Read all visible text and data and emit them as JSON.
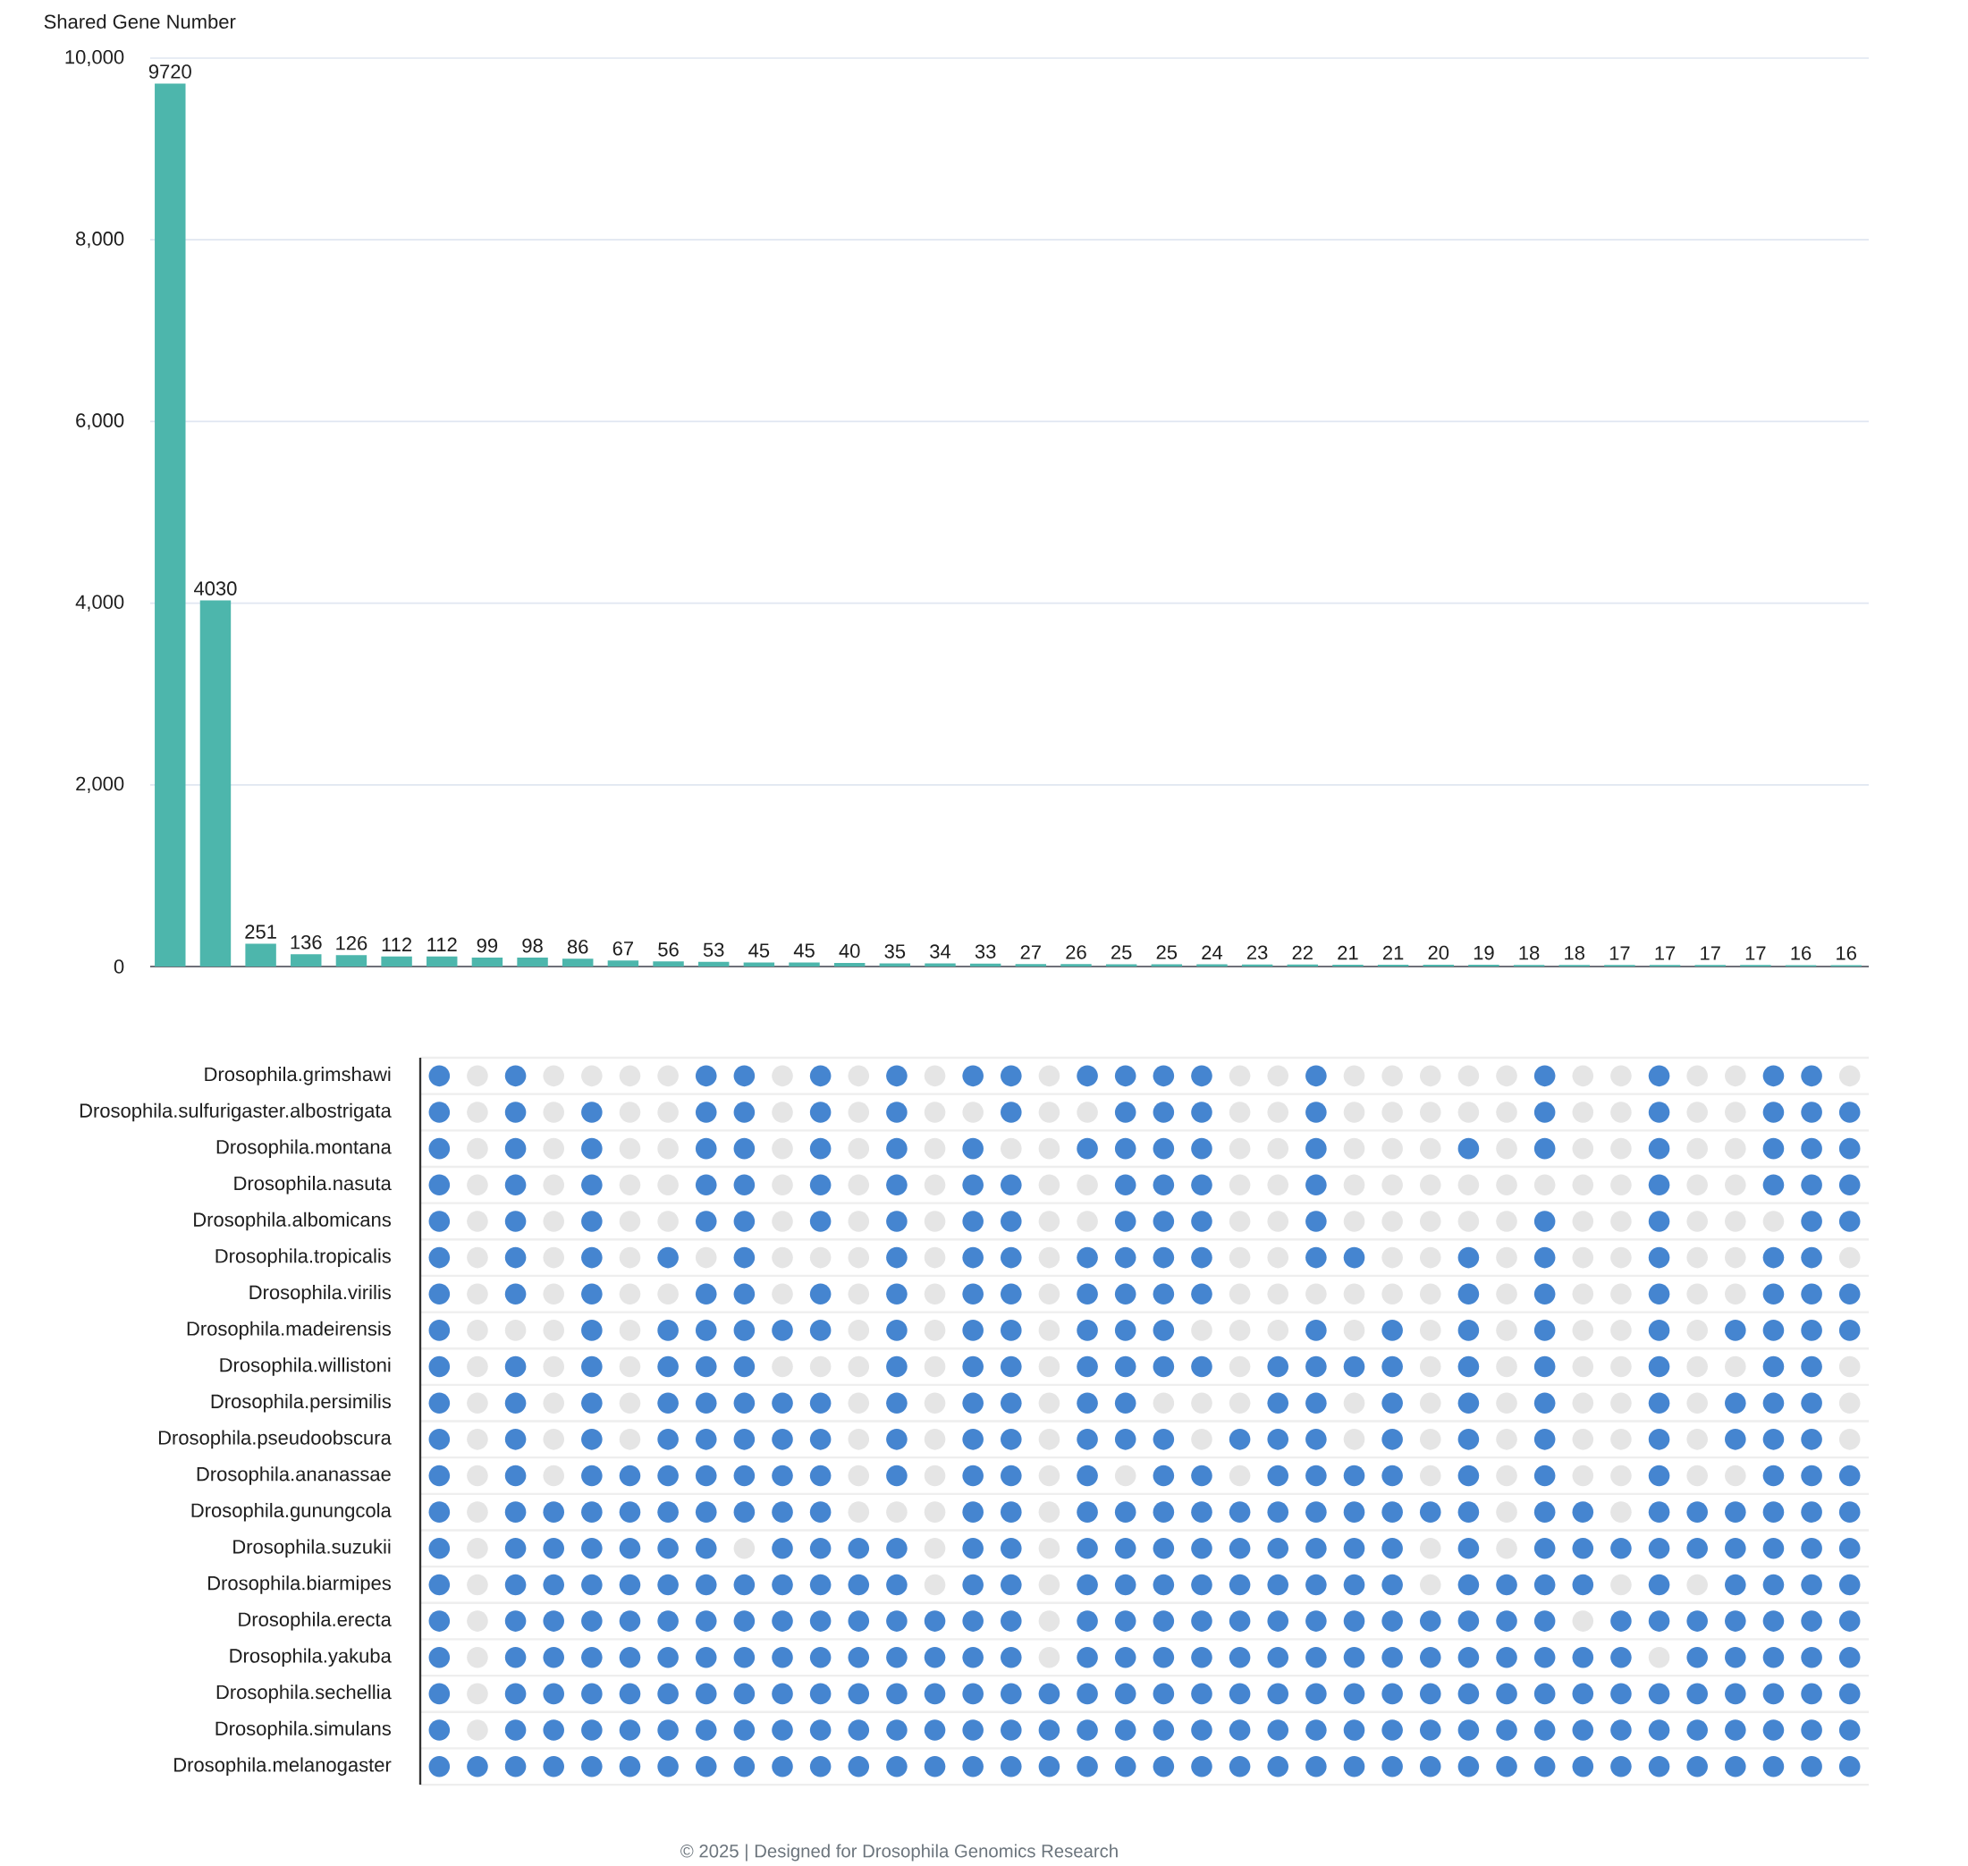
{
  "chart_data": [
    {
      "type": "bar",
      "ylabel": "Shared Gene Number",
      "categories": [
        null,
        null,
        null,
        null,
        null,
        null,
        null,
        null,
        null,
        null,
        null,
        null,
        null,
        null,
        null,
        null,
        null,
        null,
        null,
        null,
        null,
        null,
        null,
        null,
        null,
        null,
        null,
        null,
        null,
        null,
        null,
        null,
        null,
        null,
        null,
        null,
        null,
        null
      ],
      "values": [
        9720,
        4030,
        251,
        136,
        126,
        112,
        112,
        99,
        98,
        86,
        67,
        56,
        53,
        45,
        45,
        40,
        35,
        34,
        33,
        27,
        26,
        25,
        25,
        24,
        23,
        22,
        21,
        21,
        20,
        19,
        18,
        18,
        17,
        17,
        17,
        17,
        16,
        16
      ],
      "color": "#4db6ac",
      "ylim": [
        0,
        10000
      ],
      "yticks": [
        0,
        {
          "value": 2000,
          "label": "2,000"
        },
        {
          "value": 4000,
          "label": "4,000"
        },
        {
          "value": 6000,
          "label": "6,000"
        },
        {
          "value": 8000,
          "label": "8,000"
        },
        {
          "value": 10000,
          "label": "10,000"
        }
      ],
      "grid": "y",
      "data_labels": true,
      "tick_labels": "y"
    },
    {
      "type": "other",
      "categories": [
        null,
        null,
        null,
        null,
        null,
        null,
        null,
        null,
        null,
        null,
        null,
        null,
        null,
        null,
        null,
        null,
        null,
        null,
        null,
        null,
        null,
        null,
        null,
        null,
        null,
        null,
        null,
        null,
        null,
        null,
        null,
        null,
        null,
        null,
        null,
        null,
        null,
        null
      ],
      "y_categories": [
        "Drosophila.grimshawi",
        "Drosophila.sulfurigaster.albostrigata",
        "Drosophila.montana",
        "Drosophila.nasuta",
        "Drosophila.albomicans",
        "Drosophila.tropicalis",
        "Drosophila.virilis",
        "Drosophila.madeirensis",
        "Drosophila.willistoni",
        "Drosophila.persimilis",
        "Drosophila.pseudoobscura",
        "Drosophila.ananassae",
        "Drosophila.gunungcola",
        "Drosophila.suzukii",
        "Drosophila.biarmipes",
        "Drosophila.erecta",
        "Drosophila.yakuba",
        "Drosophila.sechellia",
        "Drosophila.simulans",
        "Drosophila.melanogaster"
      ],
      "cells": [
        [
          true,
          false,
          true,
          false,
          false,
          false,
          false,
          true,
          true,
          false,
          true,
          false,
          true,
          false,
          true,
          true,
          false,
          true,
          true,
          true,
          true,
          false,
          false,
          true,
          false,
          false,
          false,
          false,
          false,
          true,
          false,
          false,
          true,
          false,
          false,
          true,
          true,
          false
        ],
        [
          true,
          false,
          true,
          false,
          true,
          false,
          false,
          true,
          true,
          false,
          true,
          false,
          true,
          false,
          false,
          true,
          false,
          false,
          true,
          true,
          true,
          false,
          false,
          true,
          false,
          false,
          false,
          false,
          false,
          true,
          false,
          false,
          true,
          false,
          false,
          true,
          true,
          true
        ],
        [
          true,
          false,
          true,
          false,
          true,
          false,
          false,
          true,
          true,
          false,
          true,
          false,
          true,
          false,
          true,
          false,
          false,
          true,
          true,
          true,
          true,
          false,
          false,
          true,
          false,
          false,
          false,
          true,
          false,
          true,
          false,
          false,
          true,
          false,
          false,
          true,
          true,
          true
        ],
        [
          true,
          false,
          true,
          false,
          true,
          false,
          false,
          true,
          true,
          false,
          true,
          false,
          true,
          false,
          true,
          true,
          false,
          false,
          true,
          true,
          true,
          false,
          false,
          true,
          false,
          false,
          false,
          false,
          false,
          false,
          false,
          false,
          true,
          false,
          false,
          true,
          true,
          true
        ],
        [
          true,
          false,
          true,
          false,
          true,
          false,
          false,
          true,
          true,
          false,
          true,
          false,
          true,
          false,
          true,
          true,
          false,
          false,
          true,
          true,
          true,
          false,
          false,
          true,
          false,
          false,
          false,
          false,
          false,
          true,
          false,
          false,
          true,
          false,
          false,
          false,
          true,
          true
        ],
        [
          true,
          false,
          true,
          false,
          true,
          false,
          true,
          false,
          true,
          false,
          false,
          false,
          true,
          false,
          true,
          true,
          false,
          true,
          true,
          true,
          true,
          false,
          false,
          true,
          true,
          false,
          false,
          true,
          false,
          true,
          false,
          false,
          true,
          false,
          false,
          true,
          true,
          false
        ],
        [
          true,
          false,
          true,
          false,
          true,
          false,
          false,
          true,
          true,
          false,
          true,
          false,
          true,
          false,
          true,
          true,
          false,
          true,
          true,
          true,
          true,
          false,
          false,
          false,
          false,
          false,
          false,
          true,
          false,
          true,
          false,
          false,
          true,
          false,
          false,
          true,
          true,
          true
        ],
        [
          true,
          false,
          false,
          false,
          true,
          false,
          true,
          true,
          true,
          true,
          true,
          false,
          true,
          false,
          true,
          true,
          false,
          true,
          true,
          true,
          false,
          false,
          false,
          true,
          false,
          true,
          false,
          true,
          false,
          true,
          false,
          false,
          true,
          false,
          true,
          true,
          true,
          true
        ],
        [
          true,
          false,
          true,
          false,
          true,
          false,
          true,
          true,
          true,
          false,
          false,
          false,
          true,
          false,
          true,
          true,
          false,
          true,
          true,
          true,
          true,
          false,
          true,
          true,
          true,
          true,
          false,
          true,
          false,
          true,
          false,
          false,
          true,
          false,
          false,
          true,
          true,
          false
        ],
        [
          true,
          false,
          true,
          false,
          true,
          false,
          true,
          true,
          true,
          true,
          true,
          false,
          true,
          false,
          true,
          true,
          false,
          true,
          true,
          false,
          false,
          false,
          true,
          true,
          false,
          true,
          false,
          true,
          false,
          true,
          false,
          false,
          true,
          false,
          true,
          true,
          true,
          false
        ],
        [
          true,
          false,
          true,
          false,
          true,
          false,
          true,
          true,
          true,
          true,
          true,
          false,
          true,
          false,
          true,
          true,
          false,
          true,
          true,
          true,
          false,
          true,
          true,
          true,
          false,
          true,
          false,
          true,
          false,
          true,
          false,
          false,
          true,
          false,
          true,
          true,
          true,
          false
        ],
        [
          true,
          false,
          true,
          false,
          true,
          true,
          true,
          true,
          true,
          true,
          true,
          false,
          true,
          false,
          true,
          true,
          false,
          true,
          false,
          true,
          true,
          false,
          true,
          true,
          true,
          true,
          false,
          true,
          false,
          true,
          false,
          false,
          true,
          false,
          false,
          true,
          true,
          true
        ],
        [
          true,
          false,
          true,
          true,
          true,
          true,
          true,
          true,
          true,
          true,
          true,
          false,
          false,
          false,
          true,
          true,
          false,
          true,
          true,
          true,
          true,
          true,
          true,
          true,
          true,
          true,
          true,
          true,
          false,
          true,
          true,
          false,
          true,
          true,
          true,
          true,
          true,
          true
        ],
        [
          true,
          false,
          true,
          true,
          true,
          true,
          true,
          true,
          false,
          true,
          true,
          true,
          true,
          false,
          true,
          true,
          false,
          true,
          true,
          true,
          true,
          true,
          true,
          true,
          true,
          true,
          false,
          true,
          false,
          true,
          true,
          true,
          true,
          true,
          true,
          true,
          true,
          true
        ],
        [
          true,
          false,
          true,
          true,
          true,
          true,
          true,
          true,
          true,
          true,
          true,
          true,
          true,
          false,
          true,
          true,
          false,
          true,
          true,
          true,
          true,
          true,
          true,
          true,
          true,
          true,
          false,
          true,
          true,
          true,
          true,
          false,
          true,
          false,
          true,
          true,
          true,
          true
        ],
        [
          true,
          false,
          true,
          true,
          true,
          true,
          true,
          true,
          true,
          true,
          true,
          true,
          true,
          true,
          true,
          true,
          false,
          true,
          true,
          true,
          true,
          true,
          true,
          true,
          true,
          true,
          true,
          true,
          true,
          true,
          false,
          true,
          true,
          true,
          true,
          true,
          true,
          true
        ],
        [
          true,
          false,
          true,
          true,
          true,
          true,
          true,
          true,
          true,
          true,
          true,
          true,
          true,
          true,
          true,
          true,
          false,
          true,
          true,
          true,
          true,
          true,
          true,
          true,
          true,
          true,
          true,
          true,
          true,
          true,
          true,
          true,
          false,
          true,
          true,
          true,
          true,
          true
        ],
        [
          true,
          false,
          true,
          true,
          true,
          true,
          true,
          true,
          true,
          true,
          true,
          true,
          true,
          true,
          true,
          true,
          true,
          true,
          true,
          true,
          true,
          true,
          true,
          true,
          true,
          true,
          true,
          true,
          true,
          true,
          true,
          true,
          true,
          true,
          true,
          true,
          true,
          true
        ],
        [
          true,
          false,
          true,
          true,
          true,
          true,
          true,
          true,
          true,
          true,
          true,
          true,
          true,
          true,
          true,
          true,
          true,
          true,
          true,
          true,
          true,
          true,
          true,
          true,
          true,
          true,
          true,
          true,
          true,
          true,
          true,
          true,
          true,
          true,
          true,
          true,
          true,
          true
        ],
        [
          true,
          true,
          true,
          true,
          true,
          true,
          true,
          true,
          true,
          true,
          true,
          true,
          true,
          true,
          true,
          true,
          true,
          true,
          true,
          true,
          true,
          true,
          true,
          true,
          true,
          true,
          true,
          true,
          true,
          true,
          true,
          true,
          true,
          true,
          true,
          true,
          true,
          true
        ]
      ],
      "colors": [
        "#e5e5e5",
        "#4585d0"
      ],
      "annotations": [
        "© 2025 | Designed for Drosophila Genomics Research"
      ]
    }
  ]
}
